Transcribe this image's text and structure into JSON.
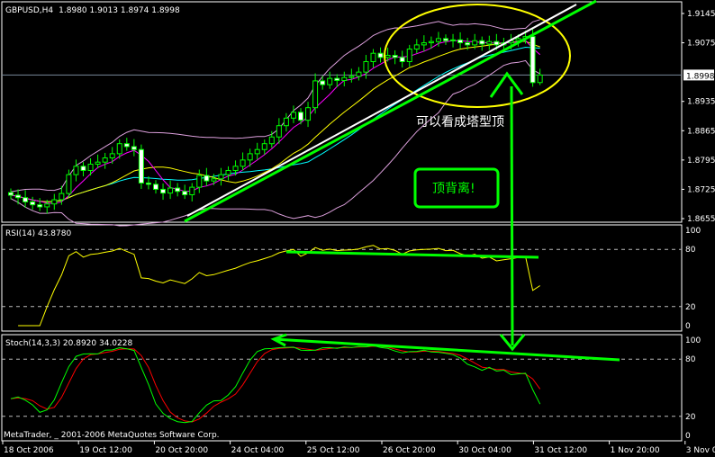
{
  "header": {
    "symbol": "GBPUSD,H4",
    "ohlc": "1.8980 1.9013 1.8974 1.8998"
  },
  "rsi_label": "RSI(14) 43.8780",
  "stoch_label": "Stoch(14,3,3) 20.8920 34.0228",
  "copyright": "MetaTrader, _ 2001-2006 MetaQuotes Software Corp.",
  "annotations": {
    "tower_top": "可以看成塔型顶",
    "divergence": "顶背离!"
  },
  "colors": {
    "bull": "#00ff00",
    "bear_body": "#ffffff",
    "ma_fast": "#ff00ff",
    "ma_mid": "#ffff00",
    "ma_slow": "#00ffff",
    "bands": "#dda0dd",
    "rsi": "#ffff00",
    "stoch_main": "#00ff00",
    "stoch_signal": "#ff0000",
    "annotation": "#00ff00",
    "ellipse": "#ffff00"
  },
  "chart_data": [
    {
      "type": "candlestick",
      "title": "GBPUSD,H4",
      "current_price": "1.8998",
      "y_ticks": [
        "1.9145",
        "1.9075",
        "1.8935",
        "1.8865",
        "1.8795",
        "1.8725",
        "1.8655"
      ],
      "ylim": [
        1.8655,
        1.9145
      ],
      "x_ticks": [
        "18 Oct 2006",
        "19 Oct 12:00",
        "20 Oct 20:00",
        "24 Oct 04:00",
        "25 Oct 12:00",
        "26 Oct 20:00",
        "30 Oct 04:00",
        "31 Oct 12:00",
        "1 Nov 20:00",
        "3 Nov 04:00"
      ],
      "last_bar": {
        "open": 1.898,
        "high": 1.9013,
        "low": 1.8974,
        "close": 1.8998
      },
      "closes": [
        1.8711,
        1.8705,
        1.8695,
        1.8688,
        1.8683,
        1.869,
        1.87,
        1.8715,
        1.876,
        1.878,
        1.877,
        1.8785,
        1.879,
        1.88,
        1.881,
        1.8834,
        1.8827,
        1.882,
        1.874,
        1.8737,
        1.8725,
        1.8716,
        1.8728,
        1.872,
        1.8712,
        1.873,
        1.8758,
        1.8745,
        1.875,
        1.876,
        1.877,
        1.878,
        1.8795,
        1.881,
        1.882,
        1.8834,
        1.885,
        1.8877,
        1.8895,
        1.8909,
        1.889,
        1.892,
        1.8984,
        1.8975,
        1.899,
        1.8985,
        1.8992,
        1.8995,
        1.9005,
        1.903,
        1.905,
        1.904,
        1.9045,
        1.904,
        1.903,
        1.906,
        1.907,
        1.9075,
        1.9078,
        1.9085,
        1.908,
        1.9082,
        1.9075,
        1.907,
        1.908,
        1.9072,
        1.9078,
        1.907,
        1.9075,
        1.908,
        1.9085,
        1.909,
        1.898,
        1.8998
      ]
    },
    {
      "type": "line",
      "title": "RSI(14) 43.8780",
      "ylim": [
        0,
        100
      ],
      "y_ticks": [
        "100",
        "80",
        "20",
        "0"
      ],
      "levels": [
        80,
        20
      ],
      "last_value": 43.878
    },
    {
      "type": "line",
      "title": "Stoch(14,3,3) 20.8920 34.0228",
      "ylim": [
        0,
        100
      ],
      "y_ticks": [
        "100",
        "80",
        "20",
        "0"
      ],
      "levels": [
        80,
        20
      ],
      "last_main": 20.892,
      "last_signal": 34.0228
    }
  ]
}
